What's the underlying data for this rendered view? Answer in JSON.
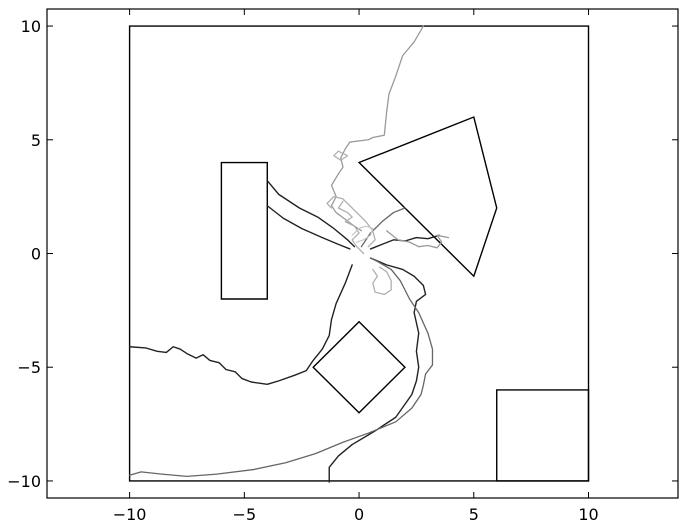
{
  "chart_data": {
    "type": "line",
    "title": "",
    "xlabel": "",
    "ylabel": "",
    "xlim": [
      -13.6,
      13.9
    ],
    "ylim": [
      -10.75,
      10.75
    ],
    "xticks": [
      -10,
      -5,
      0,
      5,
      10
    ],
    "yticks": [
      -10,
      -5,
      0,
      5,
      10
    ],
    "xtick_labels": [
      "−10",
      "−5",
      "0",
      "5",
      "10"
    ],
    "ytick_labels": [
      "−10",
      "−5",
      "0",
      "5",
      "10"
    ],
    "grid": false,
    "legend": "none",
    "colors": {
      "axes": "#000000",
      "obstacle": "#000000"
    },
    "obstacles": [
      {
        "name": "boundary",
        "points": [
          [
            -10,
            -10
          ],
          [
            10,
            -10
          ],
          [
            10,
            10
          ],
          [
            -10,
            10
          ]
        ]
      },
      {
        "name": "rectangle-left",
        "points": [
          [
            -6,
            -2
          ],
          [
            -4,
            -2
          ],
          [
            -4,
            4
          ],
          [
            -6,
            4
          ]
        ]
      },
      {
        "name": "triangle-right",
        "points": [
          [
            0,
            4
          ],
          [
            5,
            6
          ],
          [
            6,
            2
          ],
          [
            5,
            -1
          ]
        ]
      },
      {
        "name": "diamond-center",
        "points": [
          [
            0,
            -3
          ],
          [
            2,
            -5
          ],
          [
            0,
            -7
          ],
          [
            -2,
            -5
          ]
        ]
      },
      {
        "name": "square-bottom-right",
        "points": [
          [
            6,
            -10
          ],
          [
            10,
            -10
          ],
          [
            10,
            -6
          ],
          [
            6,
            -6
          ]
        ]
      }
    ],
    "series": [
      {
        "color": "#222222",
        "width": 1.4,
        "values": [
          [
            -10,
            -4.1
          ],
          [
            -9.3,
            -4.15
          ],
          [
            -8.8,
            -4.3
          ],
          [
            -8.4,
            -4.35
          ],
          [
            -8.1,
            -4.1
          ],
          [
            -7.8,
            -4.2
          ],
          [
            -7.5,
            -4.4
          ],
          [
            -7.1,
            -4.6
          ],
          [
            -6.8,
            -4.45
          ],
          [
            -6.5,
            -4.7
          ],
          [
            -6.1,
            -4.8
          ],
          [
            -5.8,
            -5.1
          ],
          [
            -5.4,
            -5.2
          ],
          [
            -5.1,
            -5.5
          ],
          [
            -4.7,
            -5.65
          ],
          [
            -4.0,
            -5.75
          ],
          [
            -3.5,
            -5.6
          ],
          [
            -2.8,
            -5.35
          ],
          [
            -2.3,
            -5.15
          ],
          [
            -2.0,
            -4.7
          ],
          [
            -1.6,
            -4.2
          ],
          [
            -1.3,
            -3.6
          ],
          [
            -1.2,
            -2.9
          ],
          [
            -1.0,
            -2.2
          ],
          [
            -0.6,
            -1.3
          ],
          [
            -0.3,
            -0.5
          ]
        ]
      },
      {
        "color": "#222222",
        "width": 1.4,
        "values": [
          [
            -4.0,
            2.1
          ],
          [
            -3.3,
            1.55
          ],
          [
            -2.5,
            1.1
          ],
          [
            -1.6,
            0.7
          ],
          [
            -0.9,
            0.4
          ],
          [
            -0.4,
            0.2
          ]
        ]
      },
      {
        "color": "#222222",
        "width": 1.4,
        "values": [
          [
            -4.0,
            3.2
          ],
          [
            -3.5,
            2.6
          ],
          [
            -2.6,
            2.0
          ],
          [
            -1.8,
            1.6
          ],
          [
            -1.1,
            1.1
          ],
          [
            -0.5,
            0.6
          ],
          [
            -0.2,
            0.3
          ]
        ]
      },
      {
        "color": "#222222",
        "width": 1.4,
        "values": [
          [
            0.5,
            0.2
          ],
          [
            1.0,
            0.4
          ],
          [
            1.5,
            0.6
          ],
          [
            2.0,
            0.55
          ],
          [
            2.5,
            0.7
          ],
          [
            3.0,
            0.65
          ],
          [
            3.5,
            0.8
          ]
        ]
      },
      {
        "color": "#222222",
        "width": 1.4,
        "values": [
          [
            0.5,
            -0.2
          ],
          [
            1.2,
            -0.5
          ],
          [
            1.9,
            -0.7
          ],
          [
            2.4,
            -1.0
          ],
          [
            2.8,
            -1.4
          ],
          [
            2.9,
            -1.8
          ],
          [
            2.5,
            -2.1
          ],
          [
            2.4,
            -2.6
          ],
          [
            2.6,
            -3.5
          ],
          [
            2.5,
            -4.3
          ],
          [
            2.6,
            -5.0
          ],
          [
            2.5,
            -5.6
          ],
          [
            2.3,
            -6.2
          ],
          [
            1.6,
            -7.2
          ],
          [
            0.7,
            -7.8
          ],
          [
            -0.3,
            -8.4
          ],
          [
            -0.9,
            -8.9
          ],
          [
            -1.3,
            -9.4
          ],
          [
            -1.3,
            -10.05
          ]
        ]
      },
      {
        "color": "#666666",
        "width": 1.3,
        "values": [
          [
            -10,
            -9.75
          ],
          [
            -9.5,
            -9.6
          ],
          [
            -8.6,
            -9.7
          ],
          [
            -7.5,
            -9.8
          ],
          [
            -6.2,
            -9.7
          ],
          [
            -4.6,
            -9.5
          ],
          [
            -3.2,
            -9.2
          ],
          [
            -1.9,
            -8.8
          ],
          [
            -0.7,
            -8.3
          ],
          [
            0.4,
            -7.9
          ],
          [
            1.6,
            -7.4
          ],
          [
            2.3,
            -6.8
          ],
          [
            2.7,
            -6.2
          ],
          [
            2.8,
            -5.8
          ],
          [
            2.9,
            -5.3
          ],
          [
            3.2,
            -4.9
          ],
          [
            3.2,
            -4.2
          ],
          [
            3.0,
            -3.5
          ],
          [
            2.6,
            -2.6
          ],
          [
            2.2,
            -2.0
          ],
          [
            1.8,
            -1.2
          ],
          [
            1.4,
            -0.7
          ],
          [
            0.8,
            -0.35
          ],
          [
            0.5,
            -0.2
          ]
        ]
      },
      {
        "color": "#666666",
        "width": 1.3,
        "values": [
          [
            0.1,
            0.3
          ],
          [
            0.5,
            0.9
          ],
          [
            1.0,
            1.4
          ],
          [
            1.5,
            1.8
          ],
          [
            2.0,
            2.0
          ]
        ]
      },
      {
        "color": "#9a9a9a",
        "width": 1.3,
        "values": [
          [
            2.8,
            10.0
          ],
          [
            2.4,
            9.3
          ],
          [
            1.9,
            8.7
          ],
          [
            1.6,
            7.8
          ],
          [
            1.3,
            7.0
          ],
          [
            1.2,
            6.2
          ],
          [
            1.1,
            5.2
          ],
          [
            0.6,
            5.1
          ],
          [
            0.4,
            5.0
          ],
          [
            -0.4,
            4.9
          ],
          [
            -0.6,
            4.6
          ],
          [
            -0.8,
            4.2
          ],
          [
            -0.7,
            3.8
          ],
          [
            -0.9,
            3.5
          ],
          [
            -1.2,
            3.0
          ],
          [
            -1.0,
            2.5
          ],
          [
            -1.2,
            2.1
          ],
          [
            -1.0,
            1.8
          ],
          [
            -0.6,
            1.5
          ],
          [
            -0.2,
            1.2
          ],
          [
            0.1,
            1.0
          ]
        ]
      },
      {
        "color": "#9a9a9a",
        "width": 1.3,
        "values": [
          [
            1.2,
            1.0
          ],
          [
            1.7,
            0.6
          ],
          [
            2.2,
            0.5
          ],
          [
            2.6,
            0.3
          ],
          [
            3.0,
            0.35
          ],
          [
            3.4,
            0.25
          ],
          [
            3.6,
            0.5
          ],
          [
            3.4,
            0.8
          ],
          [
            3.9,
            0.7
          ]
        ]
      },
      {
        "color": "#b0b0b0",
        "width": 1.3,
        "values": [
          [
            -0.7,
            2.3
          ],
          [
            -0.9,
            2.0
          ],
          [
            -0.5,
            1.8
          ],
          [
            -0.3,
            1.6
          ],
          [
            -0.6,
            1.4
          ],
          [
            -0.2,
            1.2
          ],
          [
            0.0,
            0.9
          ],
          [
            -0.3,
            0.6
          ],
          [
            -0.1,
            0.3
          ],
          [
            0.2,
            0.0
          ]
        ]
      },
      {
        "color": "#b0b0b0",
        "width": 1.3,
        "values": [
          [
            -1.2,
            2.0
          ],
          [
            -1.4,
            2.2
          ],
          [
            -1.1,
            2.5
          ],
          [
            -0.7,
            2.4
          ],
          [
            -0.4,
            2.1
          ],
          [
            -0.1,
            1.8
          ],
          [
            0.3,
            1.4
          ],
          [
            0.6,
            1.0
          ],
          [
            0.7,
            0.6
          ],
          [
            0.4,
            0.3
          ]
        ]
      },
      {
        "color": "#b0b0b0",
        "width": 1.3,
        "values": [
          [
            0.6,
            -0.7
          ],
          [
            0.8,
            -1.0
          ],
          [
            0.6,
            -1.3
          ],
          [
            0.7,
            -1.7
          ],
          [
            1.1,
            -1.8
          ],
          [
            1.4,
            -1.6
          ],
          [
            1.4,
            -1.2
          ],
          [
            1.2,
            -0.8
          ],
          [
            0.9,
            -0.6
          ]
        ]
      },
      {
        "color": "#b0b0b0",
        "width": 1.3,
        "values": [
          [
            -0.9,
            4.5
          ],
          [
            -0.5,
            4.3
          ],
          [
            -0.8,
            4.1
          ],
          [
            -1.1,
            4.3
          ],
          [
            -0.9,
            4.5
          ]
        ]
      },
      {
        "color": "#c8c8c8",
        "width": 1.2,
        "values": [
          [
            -0.3,
            0.8
          ],
          [
            0.0,
            1.1
          ],
          [
            0.3,
            1.2
          ],
          [
            0.6,
            1.1
          ],
          [
            0.5,
            0.8
          ],
          [
            0.2,
            0.6
          ],
          [
            -0.1,
            0.5
          ]
        ]
      }
    ]
  }
}
